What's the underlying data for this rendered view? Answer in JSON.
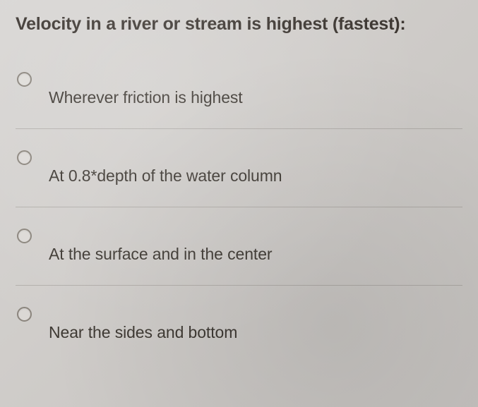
{
  "question": {
    "text": "Velocity in a river or stream is highest (fastest):"
  },
  "options": [
    {
      "label": "Wherever friction is highest"
    },
    {
      "label": "At 0.8*depth of the water column"
    },
    {
      "label": "At the surface and in the center"
    },
    {
      "label": "Near the sides and bottom"
    }
  ],
  "styling": {
    "background_colors": [
      "#d8d6d4",
      "#cecbc8",
      "#c4c1be"
    ],
    "text_color": "#3b3530",
    "radio_border_color": "#8a847c",
    "divider_color": "rgba(120,115,108,0.35)",
    "question_fontsize": 25,
    "option_fontsize": 23,
    "radio_size": 21
  }
}
